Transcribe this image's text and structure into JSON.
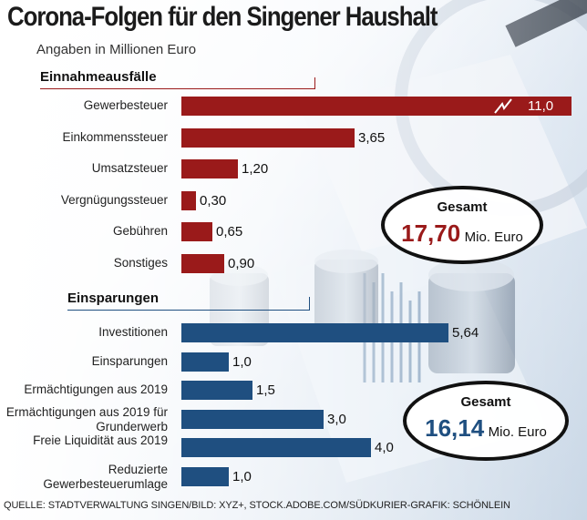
{
  "colors": {
    "income": "#9a1a1a",
    "savings": "#1f4f80"
  },
  "header": {
    "title": "Corona-Folgen für den Singener Haushalt",
    "subtitle": "Angaben in Millionen Euro"
  },
  "source": "QUELLE: STADTVERWALTUNG SINGEN/BILD: XYZ+, STOCK.ADOBE.COM/SÜDKURIER-GRAFIK: SCHÖNLEIN",
  "chart_data": [
    {
      "type": "bar",
      "title": "Einnahmeausfälle",
      "orientation": "horizontal",
      "color": "#9a1a1a",
      "categories": [
        "Gewerbesteuer",
        "Einkommenssteuer",
        "Umsatzsteuer",
        "Vergnügungssteuer",
        "Gebühren",
        "Sonstiges"
      ],
      "values": [
        11.0,
        3.65,
        1.2,
        0.3,
        0.65,
        0.9
      ],
      "value_labels": [
        "11,0",
        "3,65",
        "1,20",
        "0,30",
        "0,65",
        "0,90"
      ],
      "axis_break_on": "Gewerbesteuer",
      "total": {
        "label": "Gesamt",
        "value": "17,70",
        "unit": "Mio. Euro"
      }
    },
    {
      "type": "bar",
      "title": "Einsparungen",
      "orientation": "horizontal",
      "color": "#1f4f80",
      "categories": [
        "Investitionen",
        "Einsparungen",
        "Ermächtigungen aus 2019",
        "Ermächtigungen aus 2019 für Grunderwerb",
        "Freie Liquidität aus 2019",
        "Reduzierte Gewerbesteuerumlage"
      ],
      "values": [
        5.64,
        1.0,
        1.5,
        3.0,
        4.0,
        1.0
      ],
      "value_labels": [
        "5,64",
        "1,0",
        "1,5",
        "3,0",
        "4,0",
        "1,0"
      ],
      "total": {
        "label": "Gesamt",
        "value": "16,14",
        "unit": "Mio. Euro"
      }
    }
  ]
}
